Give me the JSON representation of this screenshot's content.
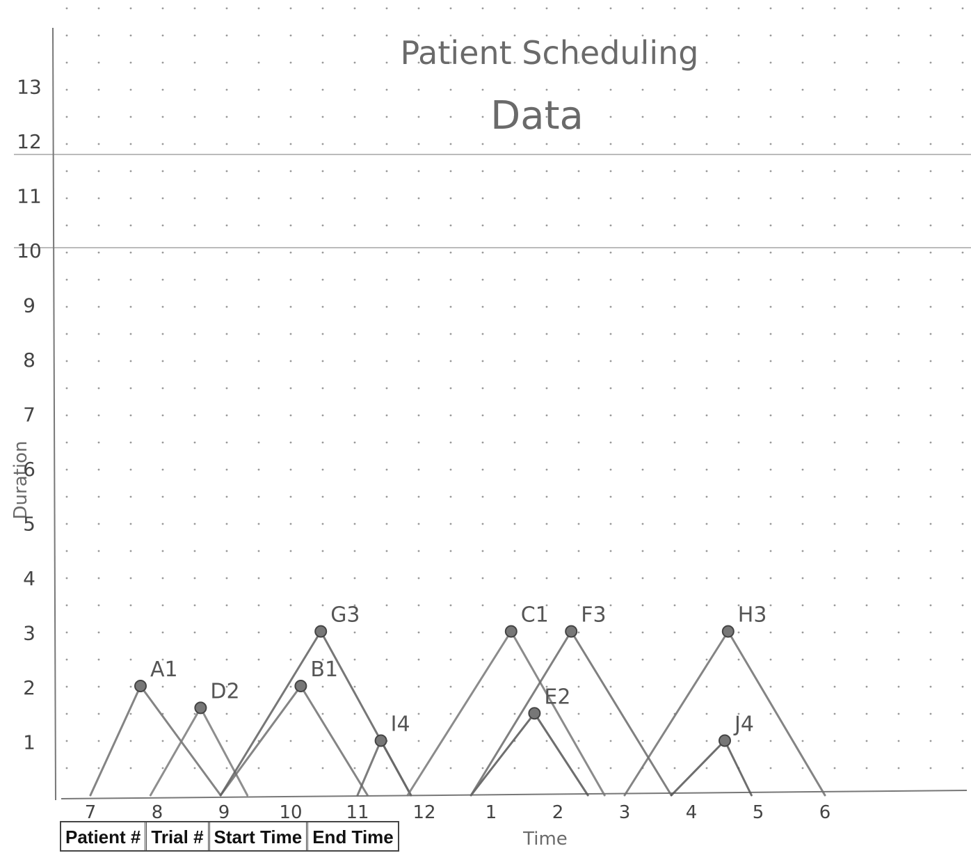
{
  "chart_data": {
    "type": "line",
    "title": "Patient Scheduling",
    "subtitle": "Data",
    "xlabel": "Time",
    "ylabel": "Duration",
    "x_ticks": [
      "7",
      "8",
      "9",
      "10",
      "11",
      "12",
      "1",
      "2",
      "3",
      "4",
      "5",
      "6"
    ],
    "y_ticks": [
      "1",
      "2",
      "3",
      "4",
      "5",
      "6",
      "7",
      "8",
      "9",
      "10",
      "11",
      "12",
      "13"
    ],
    "ylim": [
      0,
      13.5
    ],
    "grid": "dotted",
    "series": [
      {
        "name": "A1",
        "start": 7.0,
        "peak_x": 7.75,
        "duration": 2,
        "end": 8.95
      },
      {
        "name": "D2",
        "start": 7.9,
        "peak_x": 8.65,
        "duration": 1.6,
        "end": 9.35
      },
      {
        "name": "B1",
        "start": 8.95,
        "peak_x": 10.15,
        "duration": 2,
        "end": 11.15
      },
      {
        "name": "G3",
        "start": 8.95,
        "peak_x": 10.45,
        "duration": 3,
        "end": 11.8
      },
      {
        "name": "I4",
        "start": 11.0,
        "peak_x": 11.35,
        "duration": 1,
        "end": 11.8
      },
      {
        "name": "C1",
        "start": 11.75,
        "peak_x": 13.3,
        "duration": 3,
        "end": 14.7
      },
      {
        "name": "E2",
        "start": 12.7,
        "peak_x": 13.65,
        "duration": 1.5,
        "end": 14.45
      },
      {
        "name": "F3",
        "start": 12.7,
        "peak_x": 14.2,
        "duration": 3,
        "end": 15.7
      },
      {
        "name": "H3",
        "start": 15.0,
        "peak_x": 16.55,
        "duration": 3,
        "end": 18.0
      },
      {
        "name": "J4",
        "start": 15.7,
        "peak_x": 16.5,
        "duration": 1,
        "end": 16.9
      }
    ]
  },
  "table_headers": [
    "Patient #",
    "Trial #",
    "Start Time",
    "End Time"
  ]
}
